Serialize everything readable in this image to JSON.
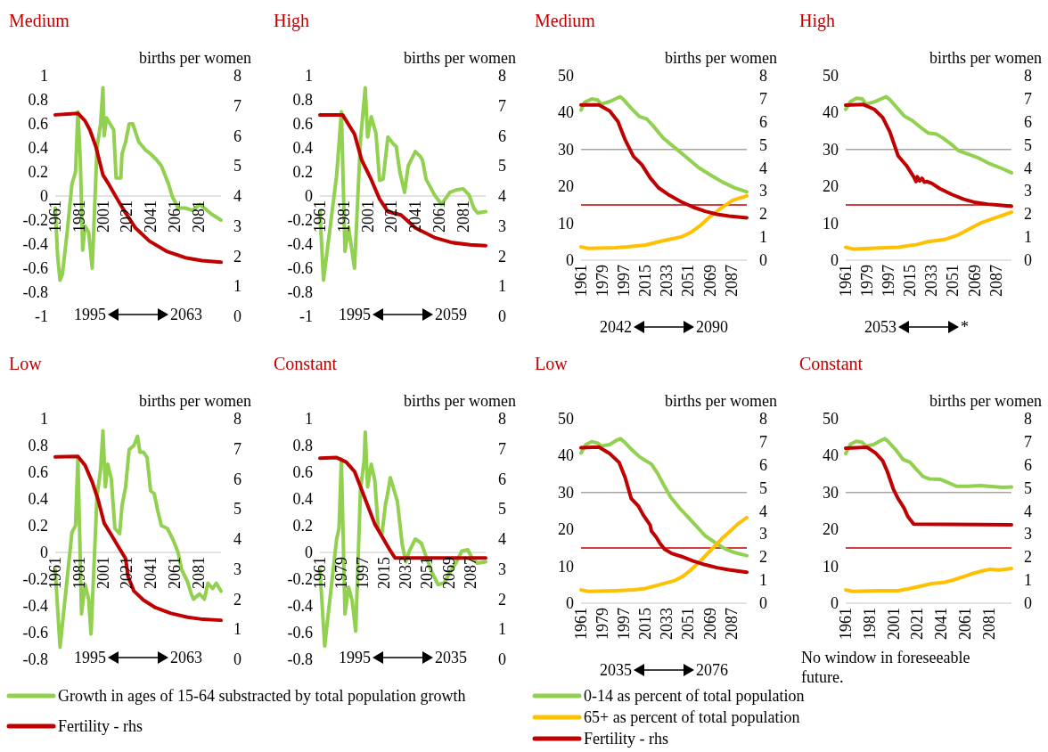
{
  "chart_data": [
    {
      "type": "line",
      "title": "Medium",
      "y2label": "births per women",
      "xlim": [
        1961,
        2100
      ],
      "xticks": [
        1961,
        1981,
        2001,
        2021,
        2041,
        2061,
        2081
      ],
      "ylim": [
        -1,
        1
      ],
      "yticks": [
        -1,
        -0.8,
        -0.6,
        -0.4,
        -0.2,
        0,
        0.2,
        0.4,
        0.6,
        0.8,
        1
      ],
      "y2lim": [
        0,
        8
      ],
      "y2ticks": [
        0,
        1,
        2,
        3,
        4,
        5,
        6,
        7,
        8
      ],
      "annotations": [
        "1995",
        "2063"
      ],
      "series": [
        {
          "color": "#92d050",
          "x": [
            1961,
            1963,
            1965,
            1967,
            1971,
            1975,
            1978,
            1980,
            1982,
            1984,
            1986,
            1989,
            1992,
            1996,
            1999,
            2001,
            2002,
            2004,
            2007,
            2010,
            2012,
            2016,
            2017,
            2020,
            2023,
            2026,
            2031,
            2037,
            2041,
            2046,
            2050,
            2056,
            2059,
            2064,
            2070,
            2076,
            2082,
            2086,
            2092,
            2100
          ],
          "values": [
            -0.1,
            -0.5,
            -0.7,
            -0.65,
            -0.3,
            0.1,
            0.2,
            0.7,
            0.3,
            -0.45,
            -0.25,
            -0.3,
            -0.6,
            0.4,
            0.6,
            0.9,
            0.5,
            0.65,
            0.6,
            0.55,
            0.15,
            0.15,
            0.35,
            0.45,
            0.6,
            0.6,
            0.45,
            0.38,
            0.35,
            0.3,
            0.25,
            0.1,
            0,
            -0.1,
            -0.1,
            -0.12,
            -0.07,
            -0.1,
            -0.15,
            -0.2
          ]
        },
        {
          "color": "#c00000",
          "axis": "y2",
          "x": [
            1961,
            1980,
            1986,
            1990,
            1995,
            2001,
            2005,
            2013,
            2019,
            2028,
            2040,
            2055,
            2070,
            2084,
            2100
          ],
          "values": [
            6.7,
            6.75,
            6.5,
            6.2,
            5.65,
            4.7,
            4.45,
            3.9,
            3.5,
            2.95,
            2.5,
            2.15,
            1.95,
            1.85,
            1.8
          ]
        }
      ]
    },
    {
      "type": "line",
      "title": "High",
      "y2label": "births per women",
      "xlim": [
        1961,
        2100
      ],
      "xticks": [
        1961,
        1981,
        2001,
        2021,
        2041,
        2061,
        2081
      ],
      "ylim": [
        -1,
        1
      ],
      "yticks": [
        -1,
        -0.8,
        -0.6,
        -0.4,
        -0.2,
        0,
        0.2,
        0.4,
        0.6,
        0.8,
        1
      ],
      "y2lim": [
        0,
        8
      ],
      "y2ticks": [
        0,
        1,
        2,
        3,
        4,
        5,
        6,
        7,
        8
      ],
      "annotations": [
        "1995",
        "2059"
      ],
      "series": [
        {
          "color": "#92d050",
          "x": [
            1961,
            1964,
            1975,
            1979,
            1982,
            1985,
            1990,
            1995,
            1999,
            2001,
            2004,
            2008,
            2011,
            2014,
            2018,
            2022,
            2025,
            2028,
            2032,
            2035,
            2041,
            2045,
            2047,
            2050,
            2057,
            2063,
            2070,
            2075,
            2081,
            2086,
            2090,
            2093,
            2100
          ],
          "values": [
            -0.13,
            -0.7,
            0.17,
            0.7,
            -0.46,
            -0.26,
            -0.6,
            0.46,
            0.9,
            0.49,
            0.66,
            0.52,
            0.13,
            0.14,
            0.49,
            0.44,
            0.41,
            0.2,
            0.03,
            0.25,
            0.37,
            0.33,
            0.3,
            0.14,
            0.01,
            -0.07,
            0.03,
            0.05,
            0.06,
            0.01,
            -0.1,
            -0.14,
            -0.13
          ]
        },
        {
          "color": "#c00000",
          "axis": "y2",
          "x": [
            1961,
            1980,
            1990,
            1996,
            2004,
            2011,
            2018,
            2029,
            2041,
            2057,
            2072,
            2087,
            2100
          ],
          "values": [
            6.7,
            6.7,
            6.06,
            5.2,
            4.55,
            3.9,
            3.48,
            3.37,
            2.94,
            2.62,
            2.45,
            2.38,
            2.35
          ]
        }
      ]
    },
    {
      "type": "line",
      "title": "Medium",
      "y2label": "births per women",
      "xlim": [
        1961,
        2100
      ],
      "xticks": [
        1961,
        1979,
        1997,
        2015,
        2033,
        2051,
        2069,
        2087
      ],
      "ylim": [
        0,
        50
      ],
      "yticks": [
        0,
        10,
        20,
        30,
        40,
        50
      ],
      "y2lim": [
        0,
        8
      ],
      "y2ticks": [
        0,
        1,
        2,
        3,
        4,
        5,
        6,
        7,
        8
      ],
      "annotations": [
        "2042",
        "2090"
      ],
      "ref_lines": [
        {
          "axis": "y",
          "value": 30,
          "color": "#a6a6a6"
        },
        {
          "axis": "y",
          "value": 15,
          "color": "#c00000"
        }
      ],
      "series": [
        {
          "color": "#92d050",
          "x": [
            1961,
            1964,
            1970,
            1975,
            1978,
            1985,
            1991,
            1994,
            1997,
            2003,
            2010,
            2016,
            2022,
            2030,
            2040,
            2050,
            2060,
            2070,
            2080,
            2090,
            2100
          ],
          "values": [
            40.7,
            42.8,
            43.7,
            43.4,
            42.3,
            43,
            43.9,
            44.3,
            43.4,
            41.2,
            38.9,
            38.3,
            36.2,
            33.1,
            30.4,
            27.7,
            25,
            23,
            21.1,
            19.6,
            18.5
          ]
        },
        {
          "color": "#ffc000",
          "x": [
            1961,
            1967,
            1990,
            2000,
            2015,
            2025,
            2033,
            2045,
            2053,
            2061,
            2070,
            2078,
            2088,
            2100
          ],
          "values": [
            3.6,
            3.2,
            3.4,
            3.6,
            4.1,
            4.9,
            5.5,
            6.3,
            7.5,
            9.4,
            12,
            14,
            16.2,
            17.4
          ]
        },
        {
          "color": "#c00000",
          "axis": "y2",
          "x": [
            1961,
            1976,
            1985,
            1992,
            1998,
            2005,
            2012,
            2019,
            2026,
            2035,
            2045,
            2055,
            2065,
            2075,
            2085,
            2100
          ],
          "values": [
            6.73,
            6.73,
            6.47,
            6.01,
            5.22,
            4.5,
            4.14,
            3.57,
            3.14,
            2.82,
            2.53,
            2.3,
            2.12,
            1.99,
            1.91,
            1.84
          ]
        }
      ]
    },
    {
      "type": "line",
      "title": "High",
      "y2label": "births per women",
      "xlim": [
        1961,
        2100
      ],
      "xticks": [
        1961,
        1979,
        1997,
        2015,
        2033,
        2051,
        2069,
        2087
      ],
      "ylim": [
        0,
        50
      ],
      "yticks": [
        0,
        10,
        20,
        30,
        40,
        50
      ],
      "y2lim": [
        0,
        8
      ],
      "y2ticks": [
        0,
        1,
        2,
        3,
        4,
        5,
        6,
        7,
        8
      ],
      "annotations": [
        "2053",
        "*"
      ],
      "ref_lines": [
        {
          "axis": "y",
          "value": 30,
          "color": "#a6a6a6"
        },
        {
          "axis": "y",
          "value": 15,
          "color": "#c00000"
        }
      ],
      "series": [
        {
          "color": "#92d050",
          "x": [
            1961,
            1965,
            1970,
            1975,
            1978,
            1985,
            1992,
            1995,
            1998,
            2003,
            2010,
            2017,
            2025,
            2030,
            2037,
            2043,
            2050,
            2056,
            2064,
            2073,
            2082,
            2091,
            2100
          ],
          "values": [
            40.9,
            43,
            43.9,
            43.7,
            42.3,
            42.9,
            43.9,
            44.3,
            43.5,
            41.7,
            39.1,
            37.8,
            35.7,
            34.5,
            34.2,
            33,
            31.3,
            29.6,
            28.7,
            27.6,
            26.1,
            25,
            23.7
          ]
        },
        {
          "color": "#ffc000",
          "x": [
            1961,
            1968,
            1990,
            2005,
            2020,
            2030,
            2045,
            2055,
            2066,
            2075,
            2085,
            2093,
            2100
          ],
          "values": [
            3.5,
            3,
            3.3,
            3.5,
            4.2,
            5,
            5.7,
            6.8,
            8.7,
            10.2,
            11.3,
            12.2,
            13
          ]
        },
        {
          "color": "#c00000",
          "axis": "y2",
          "x": [
            1961,
            1976,
            1985,
            1992,
            1998,
            2005,
            2012,
            2018,
            2020,
            2021,
            2023,
            2025,
            2027,
            2029,
            2033,
            2040,
            2050,
            2060,
            2070,
            2080,
            2090,
            2100
          ],
          "values": [
            6.72,
            6.75,
            6.54,
            6.19,
            5.57,
            4.52,
            4.1,
            3.62,
            3.41,
            3.62,
            3.44,
            3.55,
            3.38,
            3.41,
            3.34,
            3.1,
            2.85,
            2.64,
            2.5,
            2.43,
            2.39,
            2.34
          ]
        }
      ]
    },
    {
      "type": "line",
      "title": "Low",
      "y2label": "births per women",
      "xlim": [
        1961,
        2100
      ],
      "xticks": [
        1961,
        1981,
        2001,
        2021,
        2041,
        2061,
        2081
      ],
      "ylim": [
        -0.8,
        1
      ],
      "yticks": [
        -0.8,
        -0.6,
        -0.4,
        -0.2,
        0,
        0.2,
        0.4,
        0.6,
        0.8,
        1
      ],
      "y2lim": [
        0,
        8
      ],
      "y2ticks": [
        0,
        1,
        2,
        3,
        4,
        5,
        6,
        7,
        8
      ],
      "annotations": [
        "1995",
        "2063"
      ],
      "legend": "bottom",
      "series": [
        {
          "name": "Growth in ages of 15-64 substracted by total population growth",
          "color": "#92d050",
          "x": [
            1961,
            1965,
            1975,
            1978,
            1980,
            1983,
            1986,
            1989,
            1991,
            1996,
            1999,
            2001,
            2003,
            2005,
            2008,
            2011,
            2015,
            2017,
            2020,
            2023,
            2027,
            2030,
            2032,
            2035,
            2038,
            2041,
            2044,
            2047,
            2050,
            2055,
            2060,
            2064,
            2067,
            2072,
            2075,
            2077,
            2082,
            2086,
            2089,
            2093,
            2096,
            2100
          ],
          "values": [
            -0.13,
            -0.71,
            0.15,
            0.2,
            0.71,
            -0.46,
            -0.24,
            -0.35,
            -0.61,
            0.42,
            0.62,
            0.91,
            0.49,
            0.66,
            0.55,
            0.18,
            0.14,
            0.35,
            0.49,
            0.77,
            0.8,
            0.87,
            0.75,
            0.75,
            0.71,
            0.46,
            0.44,
            0.31,
            0.2,
            0.18,
            0.09,
            0,
            -0.13,
            -0.22,
            -0.31,
            -0.35,
            -0.31,
            -0.35,
            -0.23,
            -0.27,
            -0.23,
            -0.29
          ]
        },
        {
          "name": "Fertility - rhs",
          "color": "#c00000",
          "axis": "y2",
          "x": [
            1961,
            1980,
            1986,
            1992,
            1997,
            2002,
            2008,
            2014,
            2020,
            2022,
            2027,
            2035,
            2045,
            2058,
            2072,
            2085,
            2100
          ],
          "values": [
            6.73,
            6.75,
            6.45,
            5.9,
            5.3,
            4.53,
            4.14,
            3.74,
            3.35,
            2.76,
            2.27,
            1.97,
            1.72,
            1.53,
            1.4,
            1.33,
            1.3
          ]
        }
      ]
    },
    {
      "type": "line",
      "title": "Constant",
      "y2label": "births per women",
      "xlim": [
        1961,
        2100
      ],
      "xticks": [
        1961,
        1979,
        1997,
        2015,
        2033,
        2051,
        2069,
        2087
      ],
      "ylim": [
        -0.8,
        1
      ],
      "yticks": [
        -0.8,
        -0.6,
        -0.4,
        -0.2,
        0,
        0.2,
        0.4,
        0.6,
        0.8,
        1
      ],
      "y2lim": [
        0,
        8
      ],
      "y2ticks": [
        0,
        1,
        2,
        3,
        4,
        5,
        6,
        7,
        8
      ],
      "annotations": [
        "1995",
        "2035"
      ],
      "series": [
        {
          "color": "#92d050",
          "x": [
            1961,
            1965,
            1975,
            1977,
            1979,
            1982,
            1985,
            1988,
            1991,
            1995,
            1998,
            1999,
            2001,
            2004,
            2007,
            2010,
            2013,
            2016,
            2018,
            2020,
            2023,
            2026,
            2030,
            2033,
            2036,
            2041,
            2046,
            2050,
            2055,
            2060,
            2065,
            2070,
            2075,
            2080,
            2085,
            2089,
            2093,
            2100
          ],
          "values": [
            -0.13,
            -0.7,
            0.1,
            0.18,
            0.7,
            -0.46,
            -0.26,
            -0.36,
            -0.59,
            0.47,
            0.68,
            0.9,
            0.49,
            0.66,
            0.54,
            0.17,
            0.14,
            0.36,
            0.45,
            0.56,
            0.47,
            0.38,
            0.06,
            -0.07,
            0.01,
            0.1,
            0.07,
            -0.03,
            -0.15,
            -0.24,
            -0.23,
            -0.15,
            -0.08,
            0.01,
            0.02,
            -0.05,
            -0.08,
            -0.07
          ]
        },
        {
          "color": "#c00000",
          "axis": "y2",
          "x": [
            1961,
            1975,
            1983,
            1990,
            1995,
            2001,
            2007,
            2013,
            2019,
            2024,
            2100
          ],
          "values": [
            6.69,
            6.71,
            6.56,
            6.25,
            5.74,
            5.12,
            4.5,
            4.09,
            3.68,
            3.37,
            3.37
          ]
        }
      ]
    },
    {
      "type": "line",
      "title": "Low",
      "y2label": "births per women",
      "xlim": [
        1961,
        2100
      ],
      "xticks": [
        1961,
        1979,
        1997,
        2015,
        2033,
        2051,
        2069,
        2087
      ],
      "ylim": [
        0,
        50
      ],
      "yticks": [
        0,
        10,
        20,
        30,
        40,
        50
      ],
      "y2lim": [
        0,
        8
      ],
      "y2ticks": [
        0,
        1,
        2,
        3,
        4,
        5,
        6,
        7,
        8
      ],
      "annotations": [
        "2035",
        "2076"
      ],
      "legend": "bottom",
      "ref_lines": [
        {
          "axis": "y",
          "value": 30,
          "color": "#a6a6a6"
        },
        {
          "axis": "y",
          "value": 15,
          "color": "#c00000"
        }
      ],
      "series": [
        {
          "name": "0-14 as percent of total population",
          "color": "#92d050",
          "x": [
            1961,
            1965,
            1970,
            1975,
            1978,
            1985,
            1991,
            1994,
            1997,
            2003,
            2010,
            2014,
            2020,
            2025,
            2031,
            2036,
            2043,
            2050,
            2058,
            2065,
            2073,
            2082,
            2090,
            2100
          ],
          "values": [
            40.7,
            43,
            43.8,
            43.4,
            42.6,
            43,
            44.2,
            44.6,
            43.8,
            41.8,
            39.7,
            38.9,
            37.7,
            35.3,
            31.7,
            28.8,
            26,
            23.6,
            20.8,
            18.3,
            16.5,
            14.7,
            13.7,
            12.9
          ]
        },
        {
          "name": "65+ as percent of total population",
          "color": "#ffc000",
          "x": [
            1961,
            1967,
            1990,
            2005,
            2015,
            2022,
            2030,
            2040,
            2047,
            2053,
            2060,
            2066,
            2072,
            2079,
            2086,
            2093,
            2100
          ],
          "values": [
            3.6,
            3.2,
            3.4,
            3.6,
            4,
            4.6,
            5.3,
            6.2,
            7.4,
            9,
            11.1,
            13.1,
            15.1,
            17.5,
            19.5,
            21.6,
            23.2
          ]
        },
        {
          "name": "Fertility - rhs",
          "color": "#c00000",
          "axis": "y2",
          "x": [
            1961,
            1976,
            1985,
            1993,
            1998,
            2003,
            2009,
            2013,
            2019,
            2020,
            2024,
            2027,
            2031,
            2037,
            2045,
            2055,
            2065,
            2075,
            2085,
            2100
          ],
          "values": [
            6.74,
            6.77,
            6.49,
            6.1,
            5.45,
            4.55,
            4.22,
            3.84,
            3.39,
            3.13,
            2.87,
            2.61,
            2.35,
            2.16,
            2.03,
            1.83,
            1.67,
            1.54,
            1.45,
            1.34
          ]
        }
      ]
    },
    {
      "type": "line",
      "title": "Constant",
      "y2label": "births per women",
      "xlim": [
        1961,
        2100
      ],
      "xticks": [
        1961,
        1981,
        2001,
        2021,
        2041,
        2061,
        2081
      ],
      "ylim": [
        0,
        50
      ],
      "yticks": [
        0,
        10,
        20,
        30,
        40,
        50
      ],
      "y2lim": [
        0,
        8
      ],
      "y2ticks": [
        0,
        1,
        2,
        3,
        4,
        5,
        6,
        7,
        8
      ],
      "annotations": [
        "No window in foreseeable future."
      ],
      "ref_lines": [
        {
          "axis": "y",
          "value": 30,
          "color": "#a6a6a6"
        },
        {
          "axis": "y",
          "value": 15,
          "color": "#c00000"
        }
      ],
      "series": [
        {
          "color": "#92d050",
          "x": [
            1961,
            1965,
            1970,
            1975,
            1978,
            1985,
            1991,
            1994,
            1997,
            2003,
            2009,
            2015,
            2020,
            2026,
            2031,
            2040,
            2046,
            2054,
            2063,
            2074,
            2085,
            2093,
            2100
          ],
          "values": [
            40.6,
            43.1,
            43.9,
            43.6,
            42.5,
            43.1,
            44.2,
            44.6,
            43.7,
            41.6,
            39,
            38.2,
            36.4,
            34.3,
            33.7,
            33.6,
            32.8,
            31.7,
            31.7,
            31.9,
            31.6,
            31.4,
            31.5
          ]
        },
        {
          "color": "#ffc000",
          "x": [
            1961,
            1967,
            1990,
            2005,
            2015,
            2025,
            2033,
            2043,
            2050,
            2058,
            2066,
            2075,
            2082,
            2090,
            2100
          ],
          "values": [
            3.6,
            3.2,
            3.4,
            3.4,
            4,
            4.7,
            5.3,
            5.6,
            6.2,
            7,
            7.9,
            8.7,
            9.2,
            9,
            9.4
          ]
        },
        {
          "color": "#c00000",
          "axis": "y2",
          "x": [
            1961,
            1979,
            1986,
            1992,
            1996,
            2001,
            2005,
            2010,
            2013,
            2018,
            2100
          ],
          "values": [
            6.72,
            6.76,
            6.52,
            6.18,
            5.7,
            4.94,
            4.53,
            4.12,
            3.77,
            3.43,
            3.4
          ]
        }
      ]
    }
  ]
}
